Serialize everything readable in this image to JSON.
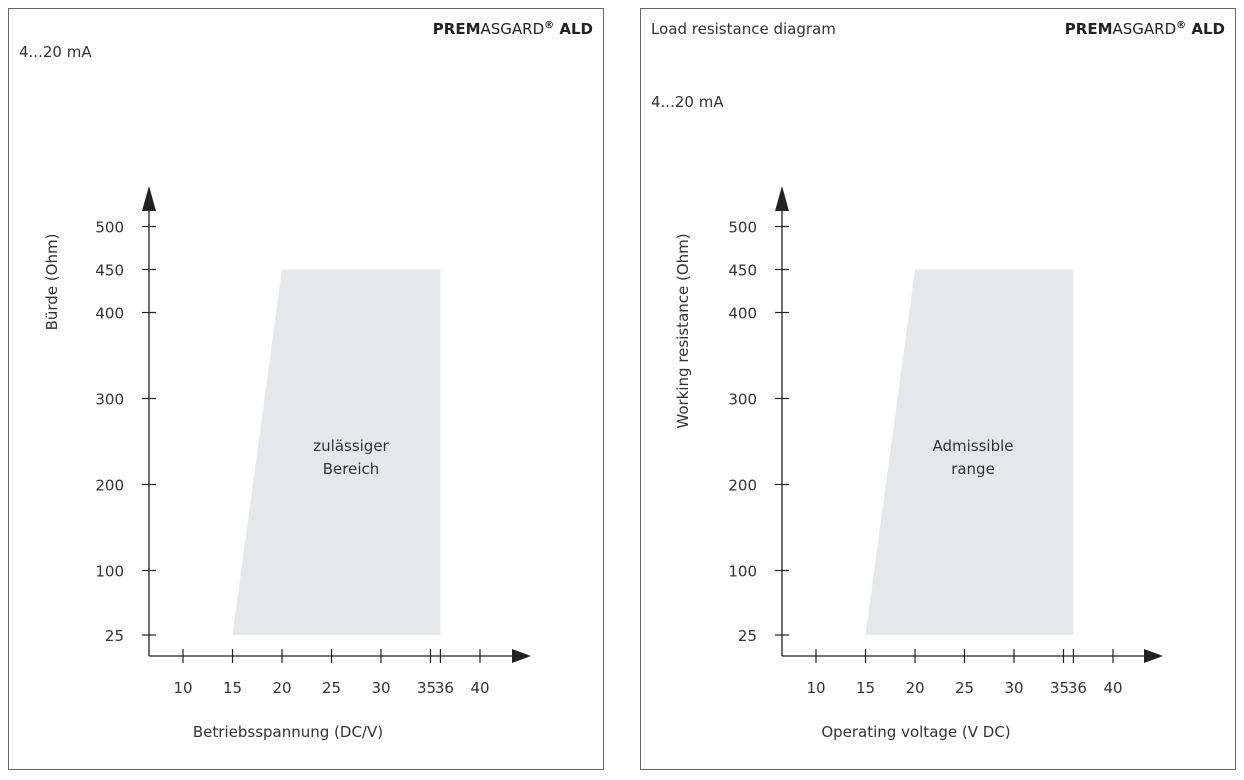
{
  "chart_data": [
    {
      "type": "area",
      "title": "",
      "brand": {
        "bold": "PREM",
        "regular": "ASGARD",
        "reg": "®",
        "suffix": "ALD"
      },
      "subtitle": "4...20 mA",
      "xlabel": "Betriebsspannung  (DC/V)",
      "ylabel": "Bürde  (Ohm)",
      "x_ticks": [
        10,
        15,
        20,
        25,
        30,
        35,
        36,
        40
      ],
      "y_ticks": [
        25,
        100,
        200,
        300,
        400,
        450,
        500
      ],
      "region_label": [
        "zulässiger",
        "Bereich"
      ],
      "region": [
        [
          15,
          25
        ],
        [
          20,
          450
        ],
        [
          36,
          450
        ],
        [
          36,
          25
        ]
      ],
      "region_color": "#e6e7e8"
    },
    {
      "type": "area",
      "title": "Load resistance diagram",
      "brand": {
        "bold": "PREM",
        "regular": "ASGARD",
        "reg": "®",
        "suffix": "ALD"
      },
      "subtitle": "4...20 mA",
      "xlabel": "Operating voltage  (V DC)",
      "ylabel": "Working resistance  (Ohm)",
      "x_ticks": [
        10,
        15,
        20,
        25,
        30,
        35,
        36,
        40
      ],
      "y_ticks": [
        25,
        100,
        200,
        300,
        400,
        450,
        500
      ],
      "region_label": [
        "Admissible",
        "range"
      ],
      "region": [
        [
          15,
          25
        ],
        [
          20,
          450
        ],
        [
          36,
          450
        ],
        [
          36,
          25
        ]
      ],
      "region_color": "#e6e7e8"
    }
  ]
}
